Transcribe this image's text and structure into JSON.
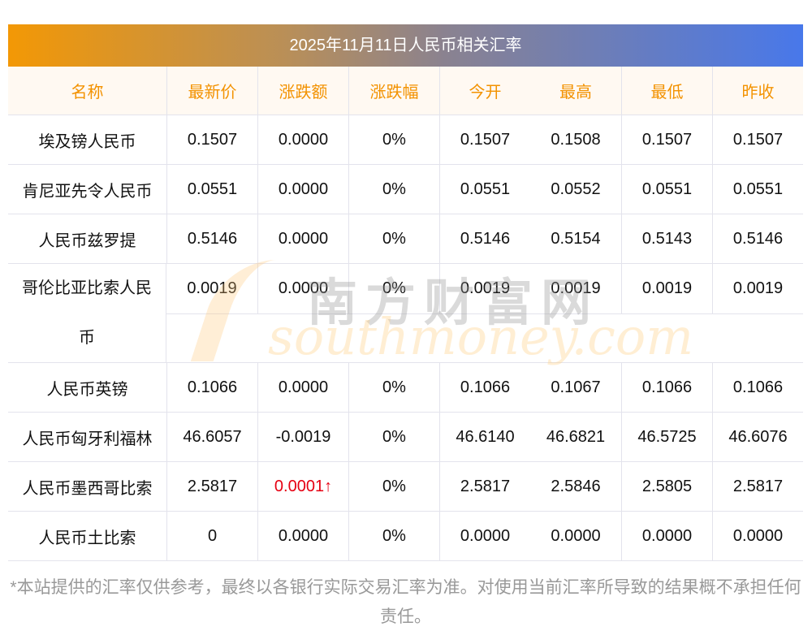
{
  "title": "2025年11月11日人民币相关汇率",
  "columns": [
    "名称",
    "最新价",
    "涨跌额",
    "涨跌幅",
    "今开",
    "最高",
    "最低",
    "昨收"
  ],
  "rows": [
    {
      "name": "埃及镑人民币",
      "values": [
        "0.1507",
        "0.0000",
        "0%",
        "0.1507",
        "0.1508",
        "0.1507",
        "0.1507"
      ]
    },
    {
      "name": "肯尼亚先令人民币",
      "values": [
        "0.0551",
        "0.0000",
        "0%",
        "0.0551",
        "0.0552",
        "0.0551",
        "0.0551"
      ]
    },
    {
      "name": "人民币兹罗提",
      "values": [
        "0.5146",
        "0.0000",
        "0%",
        "0.5146",
        "0.5154",
        "0.5143",
        "0.5146"
      ]
    },
    {
      "name": "哥伦比亚比索人民币",
      "values": [
        "0.0019",
        "0.0000",
        "0%",
        "0.0019",
        "0.0019",
        "0.0019",
        "0.0019"
      ],
      "tall": true
    },
    {
      "name": "人民币英镑",
      "values": [
        "0.1066",
        "0.0000",
        "0%",
        "0.1066",
        "0.1067",
        "0.1066",
        "0.1066"
      ]
    },
    {
      "name": "人民币匈牙利福林",
      "values": [
        "46.6057",
        "-0.0019",
        "0%",
        "46.6140",
        "46.6821",
        "46.5725",
        "46.6076"
      ]
    },
    {
      "name": "人民币墨西哥比索",
      "values": [
        "2.5817",
        "0.0001↑",
        "0%",
        "2.5817",
        "2.5846",
        "2.5805",
        "2.5817"
      ],
      "up": true
    },
    {
      "name": "人民币土比索",
      "values": [
        "0",
        "0.0000",
        "0%",
        "0.0000",
        "0.0000",
        "0.0000",
        "0.0000"
      ]
    }
  ],
  "up_color": "#e60012",
  "watermark": {
    "cn": "南方财富网",
    "en": "southmoney.com"
  },
  "note": "*本站提供的汇率仅供参考，最终以各银行实际交易汇率为准。对使用当前汇率所导致的结果概不承担任何责任。"
}
